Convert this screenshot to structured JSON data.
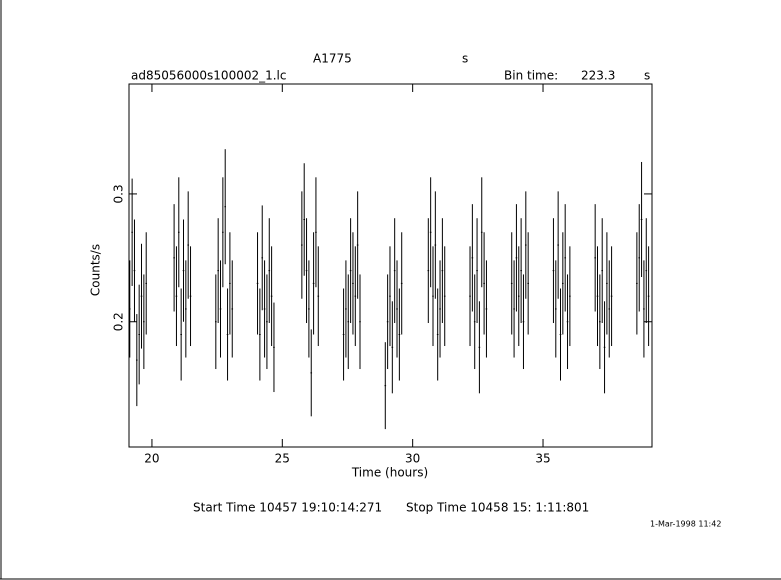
{
  "chart_data": {
    "type": "errorbar",
    "title": "A1775",
    "title_unit": "s",
    "file_name": "ad85056000s100002_1.lc",
    "bin_time_label": "Bin time:",
    "bin_time": "223.3",
    "bin_time_unit": "s",
    "y_label": "Counts/s",
    "x_label": "Time (hours)",
    "start_time": "Start Time 10457 19:10:14:271",
    "stop_time": "Stop Time 10458 15: 1:11:801",
    "date_stamp": "1-Mar-1998 11:42",
    "color": "#000000",
    "xlim": [
      19.12,
      39.18
    ],
    "xticks": [
      20,
      25,
      30,
      35
    ],
    "ylim": [
      0.102,
      0.386
    ],
    "yticks": [
      0.2,
      0.3
    ],
    "x": [
      19.15,
      19.24,
      19.33,
      19.42,
      19.51,
      19.6,
      19.69,
      19.78,
      20.85,
      20.94,
      21.03,
      21.12,
      21.21,
      21.3,
      21.39,
      21.48,
      22.45,
      22.54,
      22.63,
      22.72,
      22.81,
      22.9,
      22.99,
      23.08,
      24.05,
      24.14,
      24.23,
      24.32,
      24.41,
      24.5,
      24.59,
      24.68,
      25.75,
      25.84,
      25.93,
      26.02,
      26.11,
      26.2,
      26.29,
      26.38,
      27.35,
      27.44,
      27.53,
      27.62,
      27.71,
      27.8,
      27.89,
      27.98,
      28.95,
      29.04,
      29.13,
      29.22,
      29.31,
      29.4,
      29.49,
      29.58,
      30.6,
      30.69,
      30.78,
      30.87,
      30.96,
      31.05,
      31.14,
      31.23,
      32.2,
      32.29,
      32.38,
      32.47,
      32.56,
      32.65,
      32.74,
      32.83,
      33.8,
      33.89,
      33.98,
      34.07,
      34.16,
      34.25,
      34.34,
      34.43,
      35.4,
      35.49,
      35.58,
      35.67,
      35.76,
      35.85,
      35.94,
      36.03,
      37.0,
      37.09,
      37.18,
      37.27,
      37.36,
      37.45,
      37.54,
      37.63,
      38.6,
      38.69,
      38.78,
      38.87,
      38.96,
      39.05
    ],
    "values": [
      0.21,
      0.27,
      0.24,
      0.17,
      0.19,
      0.22,
      0.2,
      0.23,
      0.25,
      0.22,
      0.27,
      0.19,
      0.24,
      0.21,
      0.26,
      0.22,
      0.2,
      0.24,
      0.21,
      0.27,
      0.29,
      0.19,
      0.23,
      0.21,
      0.23,
      0.19,
      0.25,
      0.21,
      0.2,
      0.24,
      0.22,
      0.18,
      0.26,
      0.28,
      0.24,
      0.21,
      0.16,
      0.23,
      0.27,
      0.22,
      0.19,
      0.21,
      0.2,
      0.24,
      0.23,
      0.22,
      0.26,
      0.2,
      0.15,
      0.2,
      0.22,
      0.18,
      0.24,
      0.21,
      0.19,
      0.23,
      0.24,
      0.27,
      0.22,
      0.26,
      0.19,
      0.21,
      0.24,
      0.22,
      0.22,
      0.25,
      0.2,
      0.24,
      0.18,
      0.27,
      0.23,
      0.21,
      0.23,
      0.21,
      0.25,
      0.22,
      0.24,
      0.2,
      0.26,
      0.23,
      0.24,
      0.21,
      0.26,
      0.19,
      0.23,
      0.25,
      0.2,
      0.22,
      0.25,
      0.22,
      0.2,
      0.24,
      0.18,
      0.23,
      0.21,
      0.22,
      0.23,
      0.25,
      0.28,
      0.21,
      0.24,
      0.22
    ],
    "errors": [
      0.038,
      0.042,
      0.04,
      0.036,
      0.039,
      0.041,
      0.037,
      0.04,
      0.042,
      0.039,
      0.043,
      0.036,
      0.04,
      0.038,
      0.042,
      0.039,
      0.037,
      0.041,
      0.038,
      0.043,
      0.045,
      0.036,
      0.04,
      0.038,
      0.04,
      0.036,
      0.041,
      0.038,
      0.037,
      0.041,
      0.039,
      0.035,
      0.042,
      0.044,
      0.041,
      0.038,
      0.034,
      0.04,
      0.043,
      0.039,
      0.036,
      0.038,
      0.037,
      0.041,
      0.04,
      0.039,
      0.042,
      0.037,
      0.034,
      0.037,
      0.039,
      0.036,
      0.041,
      0.038,
      0.036,
      0.04,
      0.041,
      0.043,
      0.039,
      0.042,
      0.036,
      0.038,
      0.041,
      0.039,
      0.039,
      0.042,
      0.037,
      0.041,
      0.036,
      0.043,
      0.04,
      0.038,
      0.04,
      0.038,
      0.042,
      0.039,
      0.041,
      0.037,
      0.042,
      0.04,
      0.041,
      0.038,
      0.042,
      0.036,
      0.04,
      0.042,
      0.037,
      0.039,
      0.042,
      0.039,
      0.037,
      0.041,
      0.036,
      0.04,
      0.038,
      0.039,
      0.04,
      0.042,
      0.045,
      0.038,
      0.041,
      0.039
    ]
  }
}
